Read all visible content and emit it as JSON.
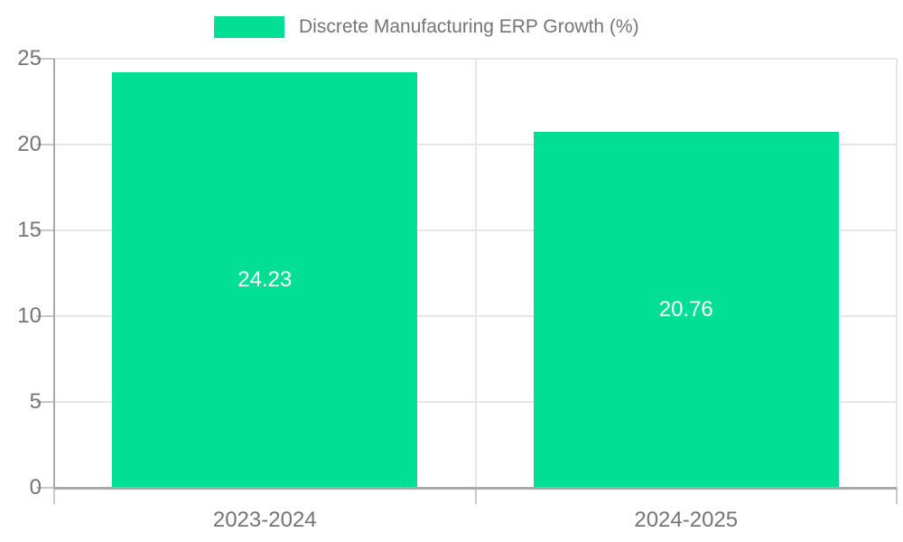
{
  "chart_data": {
    "type": "bar",
    "title": "Discrete Manufacturing ERP Growth (%)",
    "categories": [
      "2023-2024",
      "2024-2025"
    ],
    "series": [
      {
        "name": "Discrete Manufacturing ERP Growth (%)",
        "values": [
          24.23,
          20.76
        ]
      }
    ],
    "value_labels": [
      "24.23",
      "20.76"
    ],
    "xlabel": "",
    "ylabel": "",
    "ylim": [
      0,
      25
    ],
    "yticks": [
      0,
      5,
      10,
      15,
      20,
      25
    ],
    "ytick_labels": [
      "0",
      "5",
      "10",
      "15",
      "20",
      "25"
    ],
    "grid": true,
    "legend_position": "top-center",
    "colors": {
      "bar": "#00df94",
      "text": "#757575",
      "value_text": "#ffffff",
      "axis_line": "#a9a9a9",
      "tick_line": "#c9c9c9",
      "grid_line": "#e7e7e7",
      "background": "#ffffff"
    }
  }
}
